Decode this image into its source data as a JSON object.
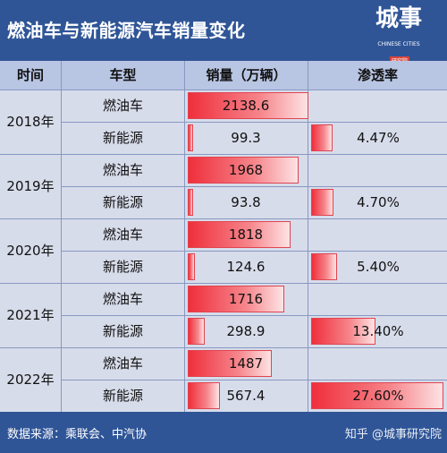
{
  "title": "燃油车与新能源汽车销量变化",
  "logo": {
    "main": "城事",
    "sub": "CHINESE CITIES",
    "badge": "研究院"
  },
  "columns": {
    "time": "时间",
    "type": "车型",
    "sales": "销量（万辆）",
    "penetration": "渗透率"
  },
  "rows": [
    {
      "year": "2018年",
      "fuel_label": "燃油车",
      "fuel_sales": "2138.6",
      "nev_label": "新能源",
      "nev_sales": "99.3",
      "nev_penetration": "4.47%"
    },
    {
      "year": "2019年",
      "fuel_label": "燃油车",
      "fuel_sales": "1968",
      "nev_label": "新能源",
      "nev_sales": "93.8",
      "nev_penetration": "4.70%"
    },
    {
      "year": "2020年",
      "fuel_label": "燃油车",
      "fuel_sales": "1818",
      "nev_label": "新能源",
      "nev_sales": "124.6",
      "nev_penetration": "5.40%"
    },
    {
      "year": "2021年",
      "fuel_label": "燃油车",
      "fuel_sales": "1716",
      "nev_label": "新能源",
      "nev_sales": "298.9",
      "nev_penetration": "13.40%"
    },
    {
      "year": "2022年",
      "fuel_label": "燃油车",
      "fuel_sales": "1487",
      "nev_label": "新能源",
      "nev_sales": "567.4",
      "nev_penetration": "27.60%"
    }
  ],
  "sales_values": [
    {
      "fuel": 2138.6,
      "nev": 99.3
    },
    {
      "fuel": 1968,
      "nev": 93.8
    },
    {
      "fuel": 1818,
      "nev": 124.6
    },
    {
      "fuel": 1716,
      "nev": 298.9
    },
    {
      "fuel": 1487,
      "nev": 567.4
    }
  ],
  "penetration_values": [
    4.47,
    4.7,
    5.4,
    13.4,
    27.6
  ],
  "sales_max": 2138.6,
  "penetration_max": 27.6,
  "footer": {
    "source": "数据来源：乘联会、中汽协",
    "watermark": "知乎 @城事研究院"
  },
  "colors": {
    "background": "#2f5597",
    "header_row": "#b8c5e3",
    "body": "#d7dcea",
    "bar": "#ef2f3c"
  }
}
